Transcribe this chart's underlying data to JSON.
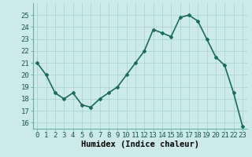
{
  "x": [
    0,
    1,
    2,
    3,
    4,
    5,
    6,
    7,
    8,
    9,
    10,
    11,
    12,
    13,
    14,
    15,
    16,
    17,
    18,
    19,
    20,
    21,
    22,
    23
  ],
  "y": [
    21,
    20,
    18.5,
    18,
    18.5,
    17.5,
    17.3,
    18,
    18.5,
    19,
    20,
    21,
    22,
    23.8,
    23.5,
    23.2,
    24.8,
    25,
    24.5,
    23,
    21.5,
    20.8,
    18.5,
    15.7
  ],
  "line_color": "#1a6b5e",
  "marker": "D",
  "marker_size": 2,
  "bg_color": "#cceaea",
  "grid_color": "#aad4d4",
  "xlabel": "Humidex (Indice chaleur)",
  "ylim": [
    15.5,
    26
  ],
  "xlim": [
    -0.5,
    23.5
  ],
  "yticks": [
    16,
    17,
    18,
    19,
    20,
    21,
    22,
    23,
    24,
    25
  ],
  "xticks": [
    0,
    1,
    2,
    3,
    4,
    5,
    6,
    7,
    8,
    9,
    10,
    11,
    12,
    13,
    14,
    15,
    16,
    17,
    18,
    19,
    20,
    21,
    22,
    23
  ],
  "xlabel_fontsize": 7.5,
  "tick_fontsize": 6.5,
  "line_width": 1.2
}
